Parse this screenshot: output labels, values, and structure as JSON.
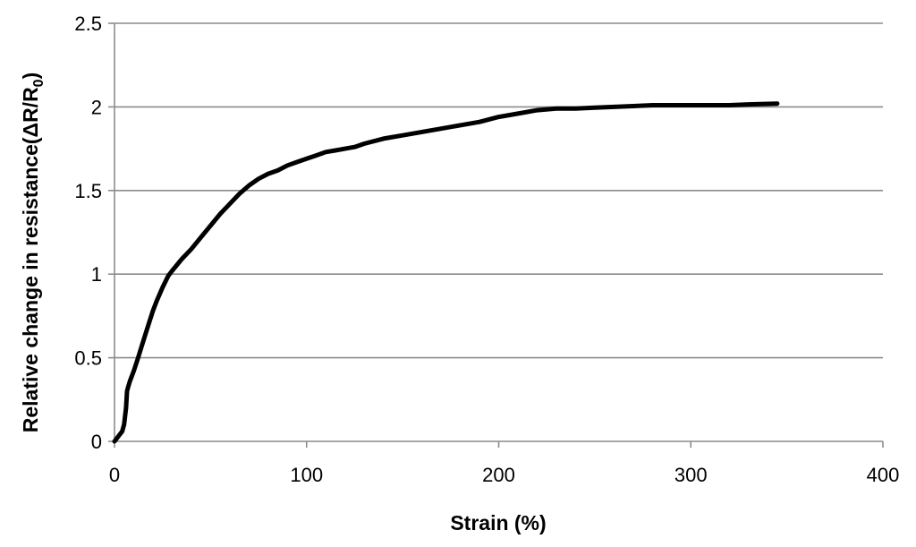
{
  "chart_data": {
    "type": "line",
    "title": "",
    "xlabel": "Strain (%)",
    "ylabel_main": "Relative change in resistance(ΔR/R",
    "ylabel_sub": "0",
    "ylabel_close": ")",
    "xlim": [
      0,
      400
    ],
    "ylim": [
      0,
      2.5
    ],
    "x_ticks": [
      0,
      100,
      200,
      300,
      400
    ],
    "x_tick_labels": [
      "0",
      "100",
      "200",
      "300",
      "400"
    ],
    "y_ticks": [
      0,
      0.5,
      1,
      1.5,
      2,
      2.5
    ],
    "y_tick_labels": [
      "0",
      "0.5",
      "1",
      "1.5",
      "2",
      "2.5"
    ],
    "grid": "horizontal",
    "series": [
      {
        "color": "#000000",
        "x": [
          0,
          2,
          4,
          5,
          6,
          6.5,
          7,
          8,
          10,
          12,
          15,
          18,
          20,
          22,
          25,
          28,
          30,
          35,
          40,
          45,
          50,
          55,
          60,
          65,
          70,
          75,
          80,
          85,
          90,
          95,
          100,
          105,
          110,
          115,
          120,
          125,
          130,
          140,
          150,
          160,
          170,
          180,
          190,
          200,
          210,
          220,
          230,
          240,
          250,
          260,
          270,
          280,
          290,
          300,
          310,
          320,
          330,
          345
        ],
        "y": [
          0,
          0.03,
          0.06,
          0.1,
          0.2,
          0.3,
          0.32,
          0.36,
          0.42,
          0.49,
          0.6,
          0.71,
          0.78,
          0.84,
          0.92,
          0.99,
          1.02,
          1.09,
          1.15,
          1.22,
          1.29,
          1.36,
          1.42,
          1.48,
          1.53,
          1.57,
          1.6,
          1.62,
          1.65,
          1.67,
          1.69,
          1.71,
          1.73,
          1.74,
          1.75,
          1.76,
          1.78,
          1.81,
          1.83,
          1.85,
          1.87,
          1.89,
          1.91,
          1.94,
          1.96,
          1.98,
          1.99,
          1.99,
          1.995,
          2.0,
          2.005,
          2.01,
          2.01,
          2.01,
          2.01,
          2.01,
          2.015,
          2.02
        ]
      }
    ]
  }
}
